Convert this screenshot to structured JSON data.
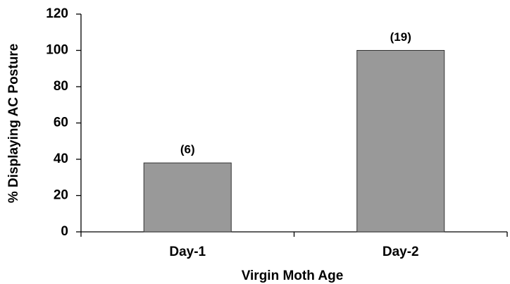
{
  "chart_data": {
    "type": "bar",
    "xlabel": "Virgin Moth Age",
    "ylabel": "% Displaying AC Posture",
    "categories": [
      "Day-1",
      "Day-2"
    ],
    "values": [
      38,
      100
    ],
    "annotations": [
      "(6)",
      "(19)"
    ],
    "color": "#999999",
    "ylim": [
      0,
      120
    ],
    "yticks": [
      0,
      20,
      40,
      60,
      80,
      100,
      120
    ],
    "grid": false
  }
}
